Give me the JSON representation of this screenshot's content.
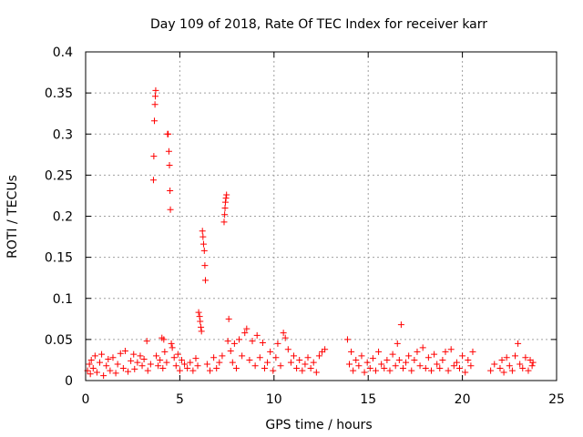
{
  "chart_data": {
    "type": "scatter",
    "title": "Day 109 of 2018, Rate Of TEC Index for receiver karr",
    "xlabel": "GPS time / hours",
    "ylabel": "ROTI / TECUs",
    "xlim": [
      0,
      25
    ],
    "ylim": [
      0,
      0.4
    ],
    "xticks": [
      "0",
      "5",
      "10",
      "15",
      "20",
      "25"
    ],
    "yticks": [
      "0",
      "0.05",
      "0.1",
      "0.15",
      "0.2",
      "0.25",
      "0.3",
      "0.35",
      "0.4"
    ],
    "marker": "+",
    "color": "#ff0000",
    "grid": true,
    "series": [
      {
        "name": "ROTI",
        "points": [
          [
            0.1,
            0.012
          ],
          [
            0.2,
            0.02
          ],
          [
            0.25,
            0.008
          ],
          [
            0.3,
            0.025
          ],
          [
            0.4,
            0.015
          ],
          [
            0.5,
            0.03
          ],
          [
            0.6,
            0.01
          ],
          [
            0.75,
            0.022
          ],
          [
            0.85,
            0.032
          ],
          [
            0.95,
            0.006
          ],
          [
            1.1,
            0.018
          ],
          [
            1.2,
            0.026
          ],
          [
            1.3,
            0.012
          ],
          [
            1.45,
            0.028
          ],
          [
            1.6,
            0.009
          ],
          [
            1.7,
            0.02
          ],
          [
            1.85,
            0.033
          ],
          [
            2.0,
            0.015
          ],
          [
            2.1,
            0.036
          ],
          [
            2.25,
            0.011
          ],
          [
            2.4,
            0.024
          ],
          [
            2.55,
            0.032
          ],
          [
            2.6,
            0.014
          ],
          [
            2.75,
            0.022
          ],
          [
            2.9,
            0.03
          ],
          [
            3.0,
            0.018
          ],
          [
            3.1,
            0.026
          ],
          [
            3.25,
            0.048
          ],
          [
            3.3,
            0.012
          ],
          [
            3.45,
            0.02
          ],
          [
            3.6,
            0.244
          ],
          [
            3.62,
            0.273
          ],
          [
            3.65,
            0.316
          ],
          [
            3.68,
            0.336
          ],
          [
            3.7,
            0.346
          ],
          [
            3.72,
            0.353
          ],
          [
            3.75,
            0.03
          ],
          [
            3.85,
            0.018
          ],
          [
            3.95,
            0.025
          ],
          [
            4.05,
            0.052
          ],
          [
            4.1,
            0.015
          ],
          [
            4.15,
            0.05
          ],
          [
            4.2,
            0.035
          ],
          [
            4.3,
            0.022
          ],
          [
            4.35,
            0.3
          ],
          [
            4.38,
            0.3
          ],
          [
            4.42,
            0.279
          ],
          [
            4.45,
            0.262
          ],
          [
            4.48,
            0.231
          ],
          [
            4.5,
            0.208
          ],
          [
            4.55,
            0.045
          ],
          [
            4.6,
            0.04
          ],
          [
            4.7,
            0.028
          ],
          [
            4.8,
            0.018
          ],
          [
            4.9,
            0.032
          ],
          [
            5.0,
            0.012
          ],
          [
            5.1,
            0.025
          ],
          [
            5.25,
            0.02
          ],
          [
            5.4,
            0.015
          ],
          [
            5.55,
            0.022
          ],
          [
            5.7,
            0.012
          ],
          [
            5.85,
            0.027
          ],
          [
            5.95,
            0.018
          ],
          [
            6.0,
            0.083
          ],
          [
            6.05,
            0.078
          ],
          [
            6.08,
            0.072
          ],
          [
            6.12,
            0.065
          ],
          [
            6.15,
            0.06
          ],
          [
            6.2,
            0.182
          ],
          [
            6.23,
            0.175
          ],
          [
            6.26,
            0.166
          ],
          [
            6.3,
            0.158
          ],
          [
            6.33,
            0.14
          ],
          [
            6.36,
            0.122
          ],
          [
            6.45,
            0.02
          ],
          [
            6.6,
            0.012
          ],
          [
            6.8,
            0.028
          ],
          [
            6.95,
            0.015
          ],
          [
            7.1,
            0.022
          ],
          [
            7.25,
            0.03
          ],
          [
            7.35,
            0.193
          ],
          [
            7.38,
            0.202
          ],
          [
            7.4,
            0.21
          ],
          [
            7.42,
            0.217
          ],
          [
            7.45,
            0.222
          ],
          [
            7.48,
            0.226
          ],
          [
            7.55,
            0.048
          ],
          [
            7.6,
            0.075
          ],
          [
            7.7,
            0.036
          ],
          [
            7.8,
            0.022
          ],
          [
            7.9,
            0.045
          ],
          [
            8.0,
            0.015
          ],
          [
            8.15,
            0.05
          ],
          [
            8.3,
            0.03
          ],
          [
            8.45,
            0.058
          ],
          [
            8.55,
            0.063
          ],
          [
            8.7,
            0.025
          ],
          [
            8.85,
            0.048
          ],
          [
            9.0,
            0.018
          ],
          [
            9.1,
            0.055
          ],
          [
            9.25,
            0.028
          ],
          [
            9.4,
            0.046
          ],
          [
            9.5,
            0.015
          ],
          [
            9.65,
            0.022
          ],
          [
            9.8,
            0.035
          ],
          [
            9.95,
            0.012
          ],
          [
            10.1,
            0.028
          ],
          [
            10.2,
            0.045
          ],
          [
            10.35,
            0.018
          ],
          [
            10.5,
            0.058
          ],
          [
            10.6,
            0.052
          ],
          [
            10.75,
            0.038
          ],
          [
            10.9,
            0.022
          ],
          [
            11.05,
            0.03
          ],
          [
            11.2,
            0.015
          ],
          [
            11.35,
            0.025
          ],
          [
            11.5,
            0.012
          ],
          [
            11.65,
            0.02
          ],
          [
            11.8,
            0.028
          ],
          [
            11.95,
            0.015
          ],
          [
            12.1,
            0.022
          ],
          [
            12.25,
            0.01
          ],
          [
            12.4,
            0.03
          ],
          [
            12.55,
            0.035
          ],
          [
            12.7,
            0.038
          ],
          [
            13.9,
            0.05
          ],
          [
            14.0,
            0.02
          ],
          [
            14.1,
            0.035
          ],
          [
            14.2,
            0.012
          ],
          [
            14.35,
            0.025
          ],
          [
            14.5,
            0.018
          ],
          [
            14.65,
            0.03
          ],
          [
            14.8,
            0.01
          ],
          [
            14.95,
            0.022
          ],
          [
            15.1,
            0.015
          ],
          [
            15.25,
            0.027
          ],
          [
            15.4,
            0.012
          ],
          [
            15.55,
            0.035
          ],
          [
            15.7,
            0.02
          ],
          [
            15.85,
            0.015
          ],
          [
            16.0,
            0.025
          ],
          [
            16.15,
            0.012
          ],
          [
            16.3,
            0.032
          ],
          [
            16.45,
            0.018
          ],
          [
            16.55,
            0.045
          ],
          [
            16.65,
            0.025
          ],
          [
            16.75,
            0.068
          ],
          [
            16.85,
            0.015
          ],
          [
            17.0,
            0.022
          ],
          [
            17.15,
            0.03
          ],
          [
            17.3,
            0.012
          ],
          [
            17.45,
            0.025
          ],
          [
            17.6,
            0.035
          ],
          [
            17.75,
            0.018
          ],
          [
            17.9,
            0.04
          ],
          [
            18.05,
            0.015
          ],
          [
            18.2,
            0.028
          ],
          [
            18.35,
            0.012
          ],
          [
            18.5,
            0.032
          ],
          [
            18.65,
            0.02
          ],
          [
            18.8,
            0.015
          ],
          [
            18.95,
            0.025
          ],
          [
            19.1,
            0.035
          ],
          [
            19.25,
            0.012
          ],
          [
            19.4,
            0.038
          ],
          [
            19.55,
            0.018
          ],
          [
            19.7,
            0.022
          ],
          [
            19.85,
            0.015
          ],
          [
            20.0,
            0.03
          ],
          [
            20.15,
            0.01
          ],
          [
            20.3,
            0.025
          ],
          [
            20.45,
            0.018
          ],
          [
            20.55,
            0.035
          ],
          [
            21.5,
            0.012
          ],
          [
            21.7,
            0.02
          ],
          [
            22.0,
            0.015
          ],
          [
            22.1,
            0.025
          ],
          [
            22.2,
            0.01
          ],
          [
            22.35,
            0.028
          ],
          [
            22.5,
            0.018
          ],
          [
            22.65,
            0.012
          ],
          [
            22.8,
            0.03
          ],
          [
            22.95,
            0.045
          ],
          [
            23.05,
            0.02
          ],
          [
            23.2,
            0.015
          ],
          [
            23.35,
            0.028
          ],
          [
            23.5,
            0.012
          ],
          [
            23.6,
            0.025
          ],
          [
            23.7,
            0.018
          ],
          [
            23.75,
            0.022
          ]
        ]
      }
    ]
  }
}
